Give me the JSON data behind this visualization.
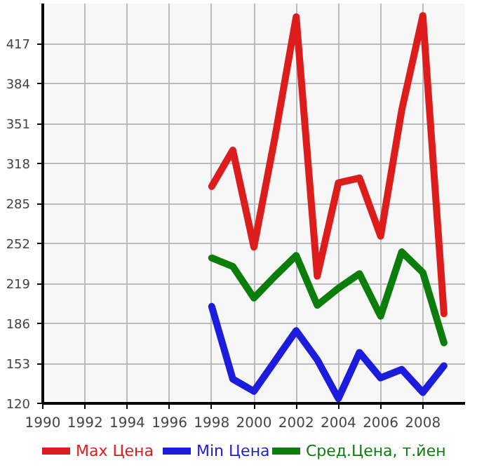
{
  "chart_data": {
    "type": "line",
    "x": [
      1998,
      1999,
      2000,
      2001,
      2002,
      2003,
      2004,
      2005,
      2006,
      2007,
      2008,
      2009
    ],
    "series": [
      {
        "name": "Max Цена",
        "color": "#dd1c1c",
        "values": [
          299,
          329,
          249,
          340,
          439,
          225,
          302,
          306,
          258,
          362,
          440,
          194
        ]
      },
      {
        "name": "Min Цена",
        "color": "#1c1cdd",
        "values": [
          200,
          140,
          130,
          155,
          180,
          156,
          124,
          162,
          141,
          148,
          129,
          151
        ]
      },
      {
        "name": "Сред.Цена, т.йен",
        "color": "#0a7d0a",
        "values": [
          240,
          233,
          207,
          225,
          242,
          201,
          215,
          227,
          192,
          245,
          228,
          170
        ]
      }
    ],
    "xlim": [
      1990,
      2010
    ],
    "ylim": [
      120,
      450
    ],
    "xticks": [
      1990,
      1992,
      1994,
      1996,
      1998,
      2000,
      2002,
      2004,
      2006,
      2008
    ],
    "yticks": [
      120,
      153,
      186,
      219,
      252,
      285,
      318,
      351,
      384,
      417
    ],
    "grid": true,
    "legend": "bottom",
    "marker": "none",
    "line_style": "solid"
  }
}
